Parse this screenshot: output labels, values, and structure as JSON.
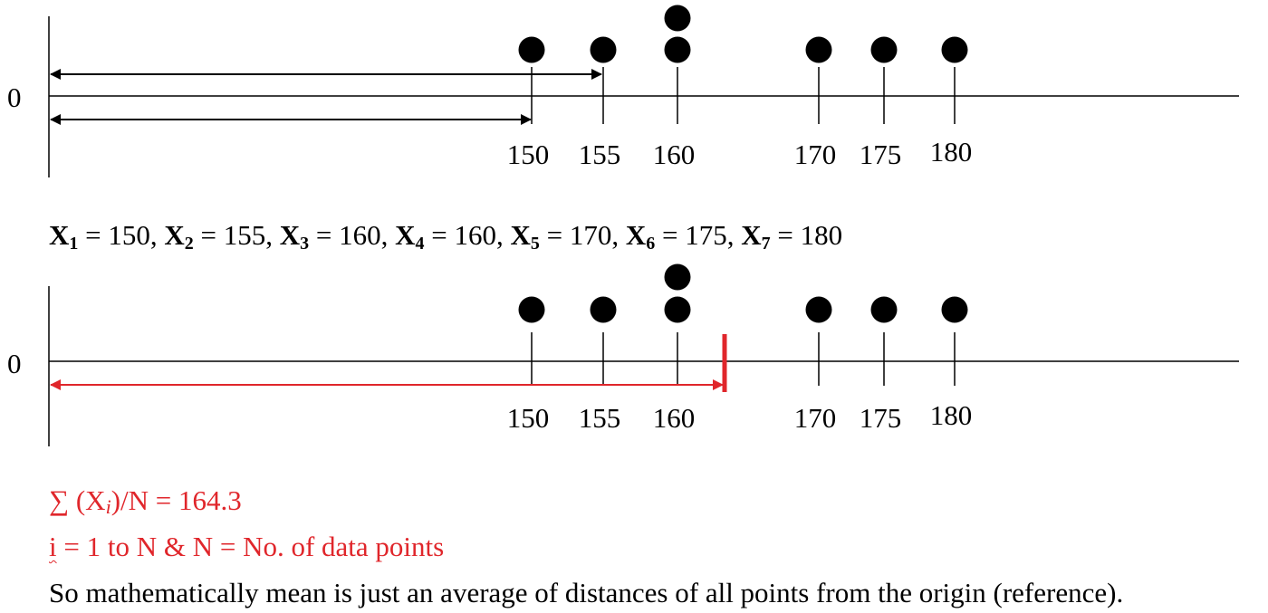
{
  "origin_label": "0",
  "ticks": [
    "150",
    "155",
    "160",
    "170",
    "175",
    "180"
  ],
  "points": [
    150,
    155,
    160,
    160,
    170,
    175,
    180
  ],
  "mean_value": 164.3,
  "equation": {
    "x1_label": "X",
    "x1_sub": "1",
    "x1_text": " = 150, ",
    "x2_label": "X",
    "x2_sub": "2",
    "x2_text": " = 155, ",
    "x3_label": "X",
    "x3_sub": "3",
    "x3_text": " = 160, ",
    "x4_label": "X",
    "x4_sub": "4",
    "x4_text": " = 160, ",
    "x5_label": "X",
    "x5_sub": "5",
    "x5_text": " = 170, ",
    "x6_label": "X",
    "x6_sub": "6",
    "x6_text": " = 175, ",
    "x7_label": "X",
    "x7_sub": "7",
    "x7_text": " = 180"
  },
  "formula": {
    "prefix": "∑ (X",
    "italic_i": "i",
    "suffix": ")/N = 164.3"
  },
  "range_text": {
    "i": "i",
    "rest": " = 1 to N & N = No. of data points"
  },
  "conclusion": "So mathematically mean is just an average of distances of all points from the origin (reference).",
  "colors": {
    "ink": "#000000",
    "accent": "#e0262b"
  }
}
